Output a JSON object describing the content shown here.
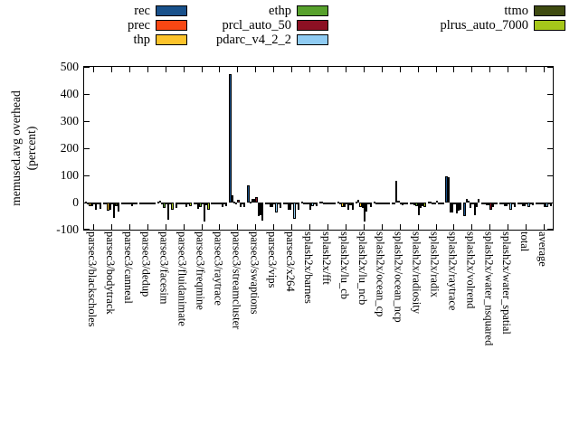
{
  "figure": {
    "background": "#ffffff"
  },
  "legend": {
    "columns": [
      {
        "items": [
          {
            "label": "rec",
            "color": "#19518b"
          },
          {
            "label": "prec",
            "color": "#f84713"
          },
          {
            "label": "thp",
            "color": "#fcc32b"
          }
        ]
      },
      {
        "items": [
          {
            "label": "ethp",
            "color": "#57a12c"
          },
          {
            "label": "prcl_auto_50",
            "color": "#8c1023"
          },
          {
            "label": "pdarc_v4_2_2",
            "color": "#8fcbf2"
          }
        ]
      },
      {
        "items": [
          {
            "label": "ttmo",
            "color": "#3f4b11"
          },
          {
            "label": "plrus_auto_7000",
            "color": "#a6c71a"
          }
        ]
      }
    ]
  },
  "chart_data": {
    "type": "bar",
    "title": "",
    "xlabel": "",
    "ylabel_line1": "memused.avg overhead",
    "ylabel_line2": "(percent)",
    "ylim": [
      -100,
      500
    ],
    "yticks": [
      500,
      400,
      300,
      200,
      100,
      0,
      -100
    ],
    "grid": false,
    "legend_position": "top",
    "categories": [
      "parsec3/blackscholes",
      "parsec3/bodytrack",
      "parsec3/canneal",
      "parsec3/dedup",
      "parsec3/facesim",
      "parsec3/fluidanimate",
      "parsec3/freqmine",
      "parsec3/raytrace",
      "parsec3/streamcluster",
      "parsec3/swaptions",
      "parsec3/vips",
      "parsec3/x264",
      "splash2x/barnes",
      "splash2x/fft",
      "splash2x/lu_cb",
      "splash2x/lu_ncb",
      "splash2x/ocean_cp",
      "splash2x/ocean_ncp",
      "splash2x/radiosity",
      "splash2x/radix",
      "splash2x/raytrace",
      "splash2x/volrend",
      "splash2x/water_nsquared",
      "splash2x/water_spatial",
      "total",
      "average"
    ],
    "series": [
      {
        "name": "rec",
        "color": "#19518b",
        "values": [
          2,
          -3,
          -4,
          -2,
          2,
          -20,
          -3,
          -2,
          475,
          65,
          -5,
          -3,
          3,
          3,
          4,
          2,
          3,
          -3,
          -2,
          2,
          98,
          -50,
          -2,
          -3,
          -2,
          -2
        ]
      },
      {
        "name": "prec",
        "color": "#f84713",
        "values": [
          -8,
          -5,
          -4,
          -2,
          8,
          -3,
          -5,
          -3,
          28,
          4,
          -3,
          -3,
          -3,
          2,
          -6,
          10,
          -3,
          -3,
          -5,
          2,
          93,
          15,
          -3,
          -5,
          -3,
          -3
        ]
      },
      {
        "name": "thp",
        "color": "#fcc32b",
        "values": [
          -12,
          -30,
          -8,
          -4,
          -8,
          -8,
          -22,
          -8,
          2,
          12,
          -18,
          -25,
          -5,
          -5,
          -15,
          -18,
          -5,
          80,
          -10,
          -3,
          -35,
          8,
          -10,
          -12,
          -12,
          -8
        ]
      },
      {
        "name": "ethp",
        "color": "#57a12c",
        "values": [
          -14,
          -28,
          -8,
          -4,
          -20,
          -8,
          -18,
          -8,
          -5,
          15,
          -18,
          -25,
          -8,
          -3,
          -18,
          -20,
          -5,
          8,
          -12,
          -3,
          -38,
          -20,
          -10,
          -12,
          -12,
          -8
        ]
      },
      {
        "name": "prcl_auto_50",
        "color": "#8c1023",
        "values": [
          -5,
          -8,
          -5,
          -3,
          -5,
          -5,
          -8,
          -4,
          10,
          20,
          -5,
          -5,
          -25,
          -3,
          -8,
          -70,
          -3,
          -5,
          -48,
          8,
          -8,
          -8,
          -25,
          -5,
          -4,
          -15
        ]
      },
      {
        "name": "pdarc_v4_2_2",
        "color": "#8fcbf2",
        "values": [
          -28,
          -58,
          -12,
          -6,
          -62,
          -18,
          -70,
          -15,
          -18,
          -50,
          -35,
          -60,
          -12,
          -8,
          -25,
          -34,
          -8,
          -10,
          -20,
          -5,
          -40,
          -45,
          -15,
          -28,
          -18,
          -18
        ]
      },
      {
        "name": "ttmo",
        "color": "#3f4b11",
        "values": [
          -8,
          -12,
          -5,
          -2,
          -8,
          -5,
          -10,
          -5,
          -5,
          -45,
          -8,
          -5,
          -5,
          -2,
          -10,
          -6,
          -3,
          -5,
          -12,
          -2,
          -30,
          -18,
          -3,
          -8,
          -5,
          -5
        ]
      },
      {
        "name": "plrus_auto_7000",
        "color": "#a6c71a",
        "values": [
          -22,
          -33,
          -8,
          -4,
          -25,
          -12,
          -25,
          -12,
          -18,
          -65,
          -20,
          -25,
          -12,
          -5,
          -28,
          -18,
          -5,
          -8,
          -18,
          -3,
          -28,
          15,
          -8,
          -15,
          -10,
          -12
        ]
      }
    ]
  }
}
